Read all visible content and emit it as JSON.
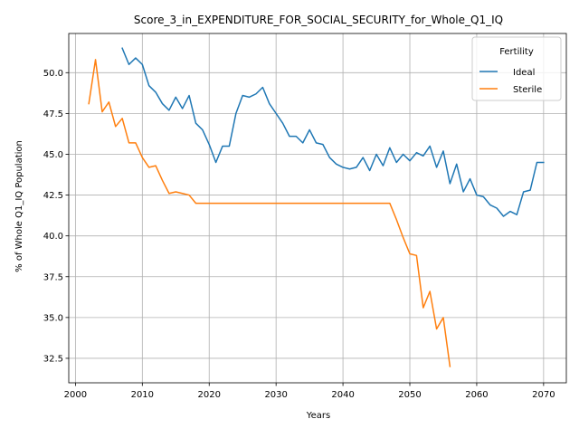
{
  "chart_data": {
    "type": "line",
    "title": "Score_3_in_EXPENDITURE_FOR_SOCIAL_SECURITY_for_Whole_Q1_IQ",
    "xlabel": "Years",
    "ylabel": "% of Whole Q1_IQ Population",
    "xlim": [
      1999,
      2073.4
    ],
    "ylim": [
      31.0,
      52.4
    ],
    "x_ticks": [
      2000,
      2010,
      2020,
      2030,
      2040,
      2050,
      2060,
      2070
    ],
    "y_ticks": [
      32.5,
      35.0,
      37.5,
      40.0,
      42.5,
      45.0,
      47.5,
      50.0
    ],
    "x_tick_labels": [
      "2000",
      "2010",
      "2020",
      "2030",
      "2040",
      "2050",
      "2060",
      "2070"
    ],
    "y_tick_labels": [
      "32.5",
      "35.0",
      "37.5",
      "40.0",
      "42.5",
      "45.0",
      "47.5",
      "50.0"
    ],
    "grid": true,
    "legend": {
      "title": "Fertility",
      "placement": "upper right",
      "entries": [
        "Ideal",
        "Sterile"
      ]
    },
    "series": [
      {
        "name": "Ideal",
        "color": "#1f77b4",
        "x": [
          2007,
          2008,
          2009,
          2010,
          2011,
          2012,
          2013,
          2014,
          2015,
          2016,
          2017,
          2018,
          2019,
          2020,
          2021,
          2022,
          2023,
          2024,
          2025,
          2026,
          2027,
          2028,
          2029,
          2030,
          2031,
          2032,
          2033,
          2034,
          2035,
          2036,
          2037,
          2038,
          2039,
          2040,
          2041,
          2042,
          2043,
          2044,
          2045,
          2046,
          2047,
          2048,
          2049,
          2050,
          2051,
          2052,
          2053,
          2054,
          2055,
          2056,
          2057,
          2058,
          2059,
          2060,
          2061,
          2062,
          2063,
          2064,
          2065,
          2066,
          2067,
          2068,
          2069,
          2070
        ],
        "y": [
          51.5,
          50.5,
          50.9,
          50.5,
          49.2,
          48.8,
          48.1,
          47.7,
          48.5,
          47.8,
          48.6,
          46.9,
          46.5,
          45.6,
          44.5,
          45.5,
          45.5,
          47.5,
          48.6,
          48.5,
          48.7,
          49.1,
          48.1,
          47.5,
          46.9,
          46.1,
          46.1,
          45.7,
          46.5,
          45.7,
          45.6,
          44.8,
          44.4,
          44.2,
          44.1,
          44.2,
          44.8,
          44.0,
          45.0,
          44.3,
          45.4,
          44.5,
          45.0,
          44.6,
          45.1,
          44.9,
          45.5,
          44.2,
          45.2,
          43.2,
          44.4,
          42.7,
          43.5,
          42.5,
          42.4,
          41.9,
          41.7,
          41.2,
          41.5,
          41.3,
          42.7,
          42.8,
          44.5,
          44.5
        ]
      },
      {
        "name": "Sterile",
        "color": "#ff7f0e",
        "x": [
          2002,
          2003,
          2004,
          2005,
          2006,
          2007,
          2008,
          2009,
          2010,
          2011,
          2012,
          2013,
          2014,
          2015,
          2016,
          2017,
          2018,
          2019,
          2020,
          2021,
          2022,
          2023,
          2024,
          2025,
          2026,
          2027,
          2028,
          2029,
          2030,
          2031,
          2032,
          2033,
          2034,
          2035,
          2036,
          2037,
          2038,
          2039,
          2040,
          2041,
          2042,
          2043,
          2044,
          2045,
          2046,
          2047,
          2048,
          2049,
          2050,
          2051,
          2052,
          2053,
          2054,
          2055,
          2056
        ],
        "y": [
          48.1,
          50.8,
          47.6,
          48.2,
          46.7,
          47.2,
          45.7,
          45.7,
          44.8,
          44.2,
          44.3,
          43.4,
          42.6,
          42.7,
          42.6,
          42.5,
          42.0,
          42.0,
          42.0,
          42.0,
          42.0,
          42.0,
          42.0,
          42.0,
          42.0,
          42.0,
          42.0,
          42.0,
          42.0,
          42.0,
          42.0,
          42.0,
          42.0,
          42.0,
          42.0,
          42.0,
          42.0,
          42.0,
          42.0,
          42.0,
          42.0,
          42.0,
          42.0,
          42.0,
          42.0,
          42.0,
          41.0,
          39.9,
          38.9,
          38.8,
          35.6,
          36.6,
          34.3,
          35.0,
          32.0
        ]
      }
    ]
  }
}
